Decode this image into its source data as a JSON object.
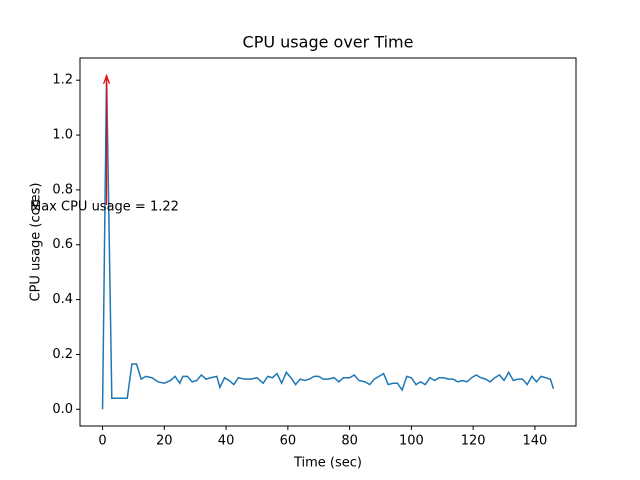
{
  "chart_data": {
    "type": "line",
    "title": "CPU usage over Time",
    "xlabel": "Time (sec)",
    "ylabel": "CPU usage (cores)",
    "annotation": "Max CPU usage = 1.22",
    "annotation_color": "#ff0000",
    "color": "#1f77b4",
    "x": [
      0,
      1.3,
      3,
      5,
      8,
      9.5,
      11,
      12.5,
      14,
      16,
      18,
      20,
      22,
      23.5,
      25,
      26,
      27.5,
      29,
      30.5,
      32,
      33.5,
      35,
      37,
      38,
      39.5,
      41,
      42.5,
      44,
      46,
      48,
      50,
      52,
      53.5,
      55,
      56.5,
      58,
      59.5,
      61,
      62.5,
      64,
      65.5,
      67,
      68.5,
      70,
      71.5,
      73,
      75,
      76.5,
      78,
      80,
      81.5,
      83,
      85,
      86.5,
      88,
      89.5,
      91,
      92.5,
      94,
      95.5,
      97,
      98.5,
      100,
      101.5,
      103,
      104.5,
      106,
      107.5,
      109,
      110.5,
      112,
      113.5,
      115,
      116.5,
      118,
      119.5,
      121,
      122.5,
      124,
      125.5,
      127,
      128.5,
      130,
      131.5,
      133,
      134.5,
      136,
      137.5,
      139,
      140.5,
      142,
      143.5,
      145,
      146
    ],
    "values": [
      0,
      1.22,
      0.04,
      0.04,
      0.04,
      0.165,
      0.165,
      0.11,
      0.12,
      0.115,
      0.1,
      0.095,
      0.105,
      0.12,
      0.095,
      0.12,
      0.12,
      0.1,
      0.105,
      0.125,
      0.11,
      0.115,
      0.12,
      0.08,
      0.115,
      0.105,
      0.09,
      0.115,
      0.11,
      0.11,
      0.115,
      0.095,
      0.12,
      0.115,
      0.13,
      0.095,
      0.135,
      0.115,
      0.09,
      0.11,
      0.105,
      0.11,
      0.12,
      0.12,
      0.11,
      0.11,
      0.115,
      0.1,
      0.115,
      0.115,
      0.125,
      0.105,
      0.1,
      0.09,
      0.11,
      0.12,
      0.13,
      0.09,
      0.095,
      0.095,
      0.07,
      0.12,
      0.115,
      0.09,
      0.1,
      0.09,
      0.115,
      0.105,
      0.115,
      0.115,
      0.11,
      0.11,
      0.1,
      0.105,
      0.1,
      0.115,
      0.125,
      0.115,
      0.11,
      0.1,
      0.115,
      0.125,
      0.105,
      0.135,
      0.105,
      0.11,
      0.11,
      0.09,
      0.12,
      0.1,
      0.12,
      0.115,
      0.11,
      0.075
    ],
    "xlim": [
      -7.3,
      153.3
    ],
    "xticks": [
      0,
      20,
      40,
      60,
      80,
      100,
      120,
      140
    ],
    "ylim": [
      -0.061,
      1.281
    ],
    "yticks": [
      {
        "value": 0,
        "label": "0.0"
      },
      0.2,
      0.4,
      0.6,
      0.8,
      {
        "value": 1,
        "label": "1.0"
      },
      1.2
    ]
  }
}
